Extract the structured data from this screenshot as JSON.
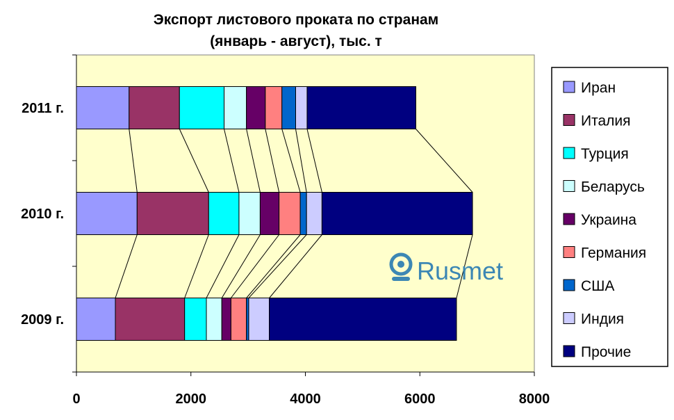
{
  "chart_data": {
    "type": "bar",
    "orientation": "horizontal",
    "stacked": true,
    "title_lines": [
      "Экспорт листового проката по странам",
      "(январь - август), тыс. т"
    ],
    "categories": [
      "2011 г.",
      "2010 г.",
      "2009 г."
    ],
    "xlim": [
      0,
      8000
    ],
    "xticks": [
      0,
      2000,
      4000,
      6000,
      8000
    ],
    "grid": false,
    "legend_position": "right",
    "series_connector_lines": true,
    "plot_background": "#ffffcc",
    "series": [
      {
        "name": "Иран",
        "color": "#9999ff",
        "values": [
          920,
          1060,
          680
        ]
      },
      {
        "name": "Италия",
        "color": "#993366",
        "values": [
          880,
          1250,
          1210
        ]
      },
      {
        "name": "Турция",
        "color": "#00ffff",
        "values": [
          780,
          530,
          380
        ]
      },
      {
        "name": "Беларусь",
        "color": "#ccffff",
        "values": [
          390,
          370,
          270
        ]
      },
      {
        "name": "Украина",
        "color": "#660066",
        "values": [
          330,
          330,
          160
        ]
      },
      {
        "name": "Германия",
        "color": "#ff8080",
        "values": [
          290,
          370,
          270
        ]
      },
      {
        "name": "США",
        "color": "#0066cc",
        "values": [
          240,
          110,
          40
        ]
      },
      {
        "name": "Индия",
        "color": "#ccccff",
        "values": [
          200,
          270,
          360
        ]
      },
      {
        "name": "Прочие",
        "color": "#000080",
        "values": [
          1900,
          2630,
          3270
        ]
      }
    ]
  },
  "watermark": {
    "text": "Rusmet",
    "color": "#3c87b4"
  }
}
